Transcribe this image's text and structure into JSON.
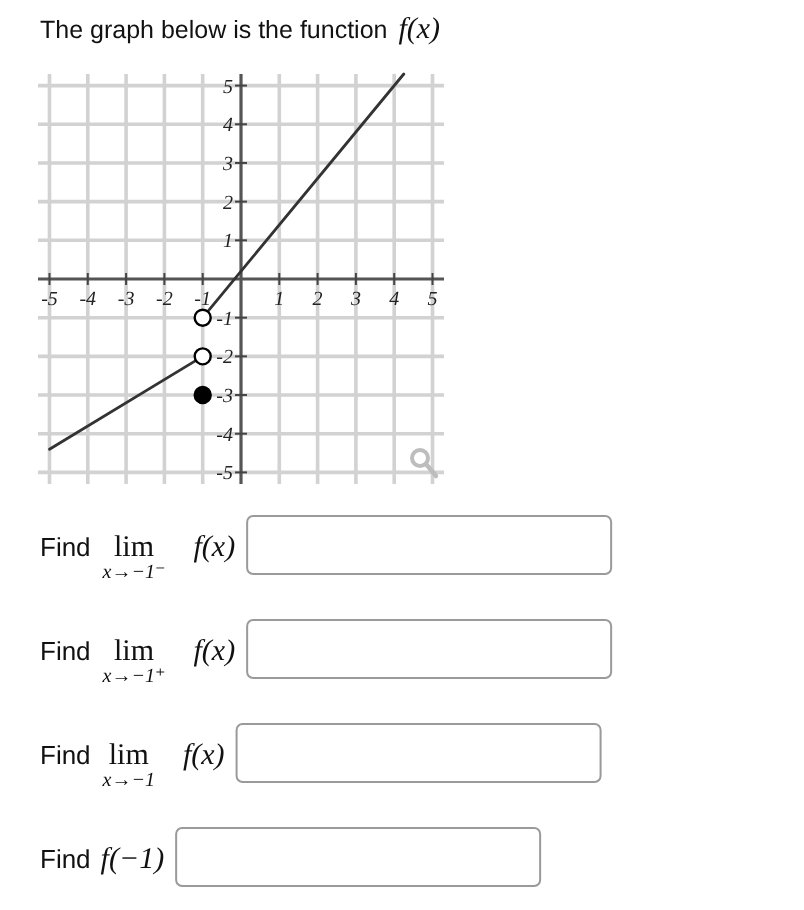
{
  "chart_data": {
    "type": "line",
    "title": "The graph below is the function f(x)",
    "xlim": [
      -5.3,
      5.3
    ],
    "ylim": [
      -5.3,
      5.3
    ],
    "xticks": [
      -5,
      -4,
      -3,
      -2,
      -1,
      1,
      2,
      3,
      4,
      5
    ],
    "yticks": [
      -5,
      -4,
      -3,
      -2,
      -1,
      1,
      2,
      3,
      4,
      5
    ],
    "grid": true,
    "series": [
      {
        "color": "#333333",
        "x": [
          -5,
          -1
        ],
        "values": [
          -4.4,
          -2
        ]
      },
      {
        "color": "#333333",
        "x": [
          -1,
          4.25
        ],
        "values": [
          -1,
          5.3
        ]
      },
      {
        "type": "scatter",
        "marker": "circle",
        "color": "#ffffff",
        "x": [
          -1,
          -1
        ],
        "values": [
          -1,
          -2
        ]
      },
      {
        "type": "scatter",
        "marker": "circle",
        "color": "#000000",
        "x": [
          -1
        ],
        "values": [
          -3
        ]
      }
    ],
    "annotations": [
      "Find lim$_{x→−1⁻}$ f(x)",
      "Find lim$_{x→−1⁺}$ f(x)",
      "Find lim$_{x→−1}$ f(x)",
      "Find f(−1)"
    ]
  }
}
